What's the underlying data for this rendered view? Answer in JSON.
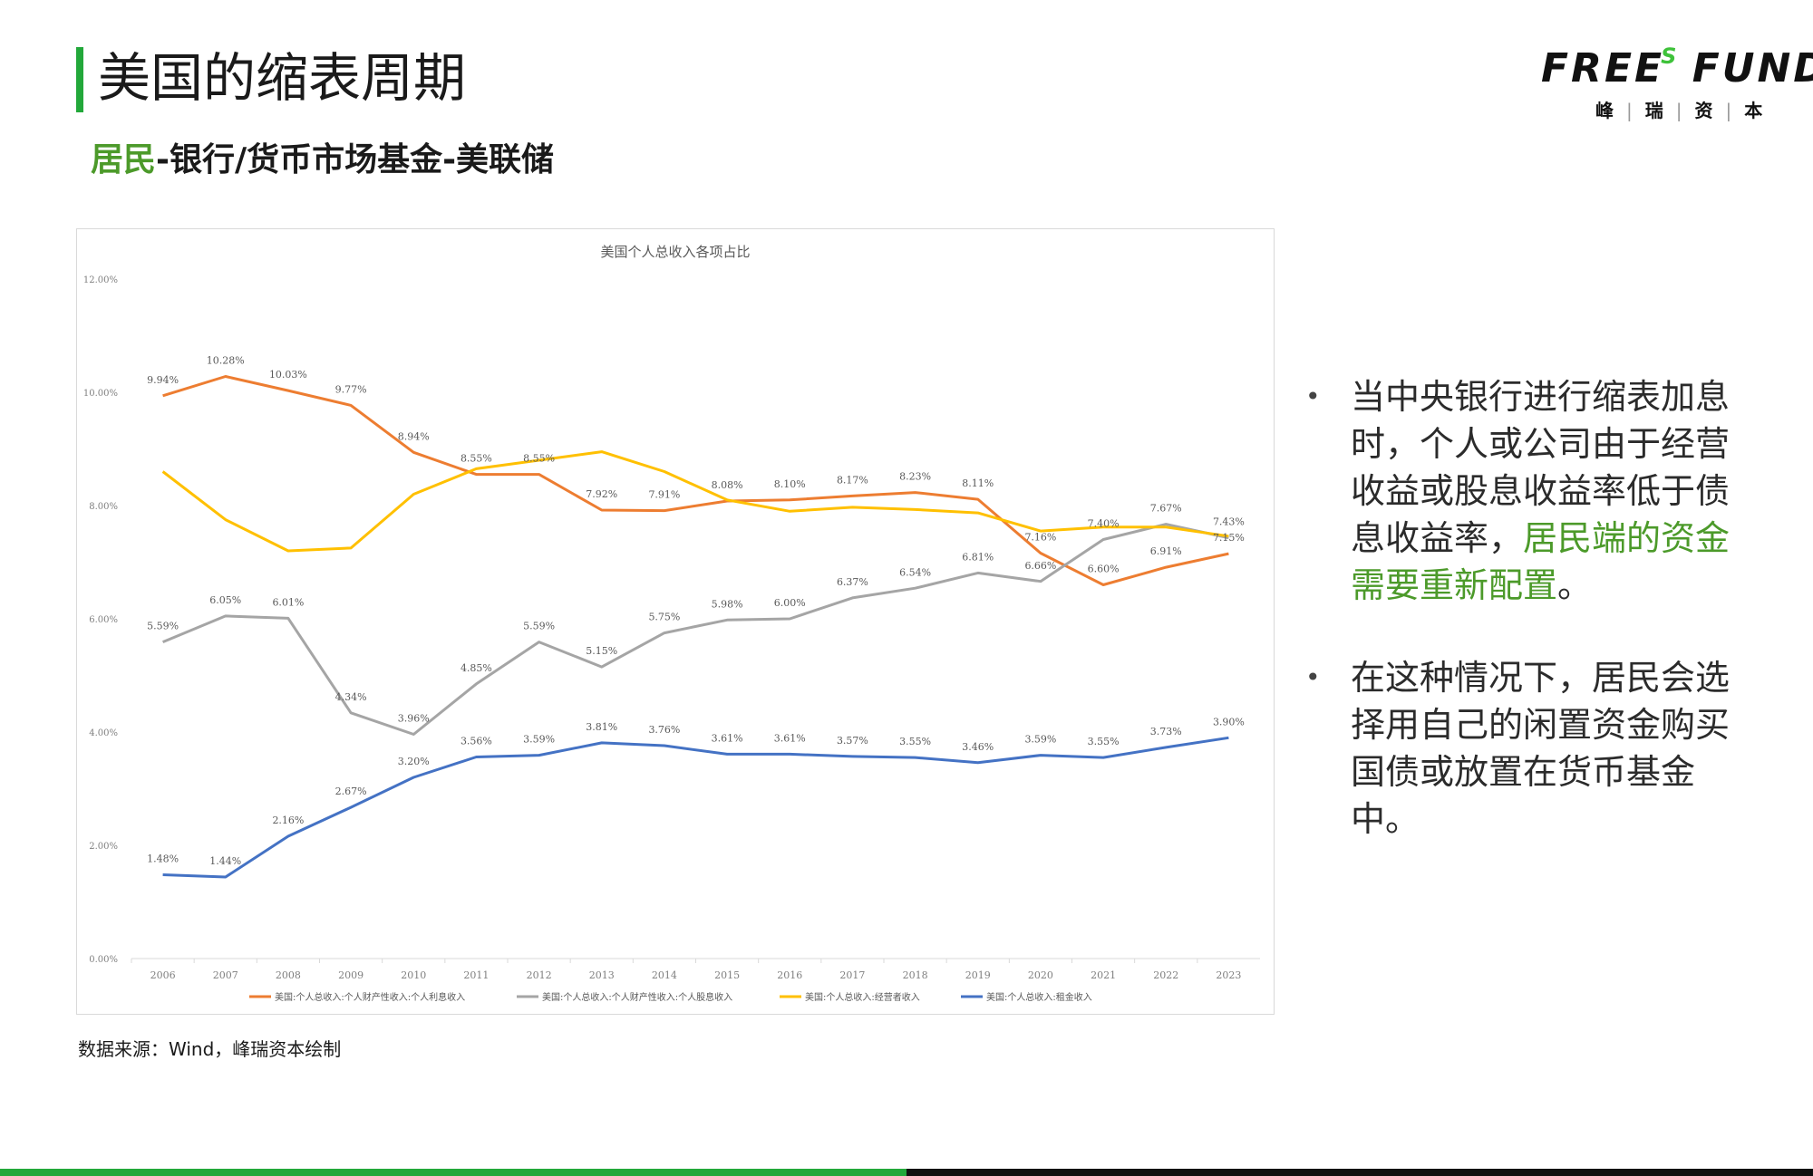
{
  "page": {
    "title": "美国的缩表周期",
    "subtitle_accent": "居民",
    "subtitle_rest": "-银行/货币市场基金-美联储",
    "source": "数据来源：Wind，峰瑞资本绘制"
  },
  "logo": {
    "text_a": "FREE",
    "text_s": "S",
    "text_b": "FUND",
    "cn": [
      "峰",
      "瑞",
      "资",
      "本"
    ]
  },
  "bullets": [
    {
      "text": "当中央银行进行缩表加息时，个人或公司由于经营收益或股息收益率低于债息收益率，",
      "highlight": "居民端的资金需要重新配置",
      "tail": "。"
    },
    {
      "text": "在这种情况下，居民会选择用自己的闲置资金购买国债或放置在货币基金中。",
      "highlight": "",
      "tail": ""
    }
  ],
  "colors": {
    "accent_green": "#22a83a",
    "highlight_green": "#4c9a2a",
    "interest": "#ed7d31",
    "dividend": "#a5a5a5",
    "proprietor": "#ffc000",
    "pension": "#4472c4"
  },
  "chart_data": {
    "type": "line",
    "title": "美国个人总收入各项占比",
    "x": [
      "2006",
      "2007",
      "2008",
      "2009",
      "2010",
      "2011",
      "2012",
      "2013",
      "2014",
      "2015",
      "2016",
      "2017",
      "2018",
      "2019",
      "2020",
      "2021",
      "2022",
      "2023"
    ],
    "ylim": [
      0,
      12
    ],
    "y_ticks": [
      "0.00%",
      "2.00%",
      "4.00%",
      "6.00%",
      "8.00%",
      "10.00%",
      "12.00%"
    ],
    "legend_position": "bottom",
    "series": [
      {
        "name": "美国:个人总收入:个人财产性收入:个人利息收入",
        "color": "#ed7d31",
        "values": [
          9.94,
          10.28,
          10.03,
          9.77,
          8.94,
          8.55,
          8.55,
          7.92,
          7.91,
          8.08,
          8.1,
          8.17,
          8.23,
          8.11,
          7.16,
          6.6,
          6.91,
          7.15
        ],
        "labels": [
          "9.94%",
          "10.28%",
          "10.03%",
          "9.77%",
          "8.94%",
          "8.55%",
          "8.55%",
          "7.92%",
          "7.91%",
          "8.08%",
          "8.10%",
          "8.17%",
          "8.23%",
          "8.11%",
          "7.16%",
          "6.60%",
          "6.91%",
          "7.15%"
        ]
      },
      {
        "name": "美国:个人总收入:个人财产性收入:个人股息收入",
        "color": "#a5a5a5",
        "values": [
          5.59,
          6.05,
          6.01,
          4.34,
          3.96,
          4.85,
          5.59,
          5.15,
          5.75,
          5.98,
          6.0,
          6.37,
          6.54,
          6.81,
          6.66,
          7.4,
          7.67,
          7.43
        ],
        "labels": [
          "5.59%",
          "6.05%",
          "6.01%",
          "4.34%",
          "3.96%",
          "4.85%",
          "5.59%",
          "5.15%",
          "5.75%",
          "5.98%",
          "6.00%",
          "6.37%",
          "6.54%",
          "6.81%",
          "6.66%",
          "7.40%",
          "7.67%",
          "7.43%"
        ]
      },
      {
        "name": "美国:个人总收入:经营者收入",
        "color": "#ffc000",
        "values": [
          8.6,
          7.75,
          7.2,
          7.25,
          8.2,
          8.65,
          8.8,
          8.95,
          8.6,
          8.1,
          7.9,
          7.97,
          7.93,
          7.87,
          7.55,
          7.62,
          7.62,
          7.46
        ],
        "labels": []
      },
      {
        "name": "美国:个人总收入:租金收入",
        "color": "#4472c4",
        "values": [
          1.48,
          1.44,
          2.16,
          2.67,
          3.2,
          3.56,
          3.59,
          3.81,
          3.76,
          3.61,
          3.61,
          3.57,
          3.55,
          3.46,
          3.59,
          3.55,
          3.73,
          3.9
        ],
        "labels": [
          "1.48%",
          "1.44%",
          "2.16%",
          "2.67%",
          "3.20%",
          "3.56%",
          "3.59%",
          "3.81%",
          "3.76%",
          "3.61%",
          "3.61%",
          "3.57%",
          "3.55%",
          "3.46%",
          "3.59%",
          "3.55%",
          "3.73%",
          "3.90%"
        ]
      }
    ]
  }
}
